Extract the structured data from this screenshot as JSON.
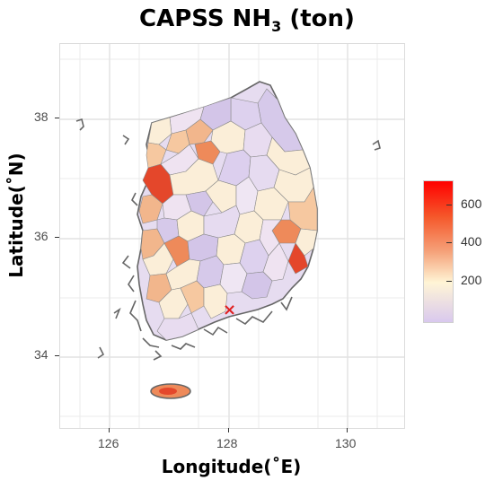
{
  "title": {
    "main": "CAPSS NH",
    "sub": "3",
    "unit": " (ton)"
  },
  "axes": {
    "ylabel": "Latitude(˚N)",
    "xlabel": "Longitude(˚E)",
    "yticks": [
      "38",
      "36",
      "34"
    ],
    "xticks": [
      "126",
      "128",
      "130"
    ]
  },
  "legend": {
    "labels": [
      "600",
      "400",
      "200"
    ],
    "colors": [
      "#ff0000",
      "#f5824e",
      "#fff5d6",
      "#d9c9ee"
    ]
  },
  "map": {
    "marker": "×",
    "colors": {
      "lavender": "#d8cdec",
      "light": "#efe7f3",
      "cream": "#fbeed8",
      "peach": "#f6c8a0",
      "orange": "#ee8a5a",
      "red": "#e4472b",
      "outline": "#666666"
    }
  }
}
